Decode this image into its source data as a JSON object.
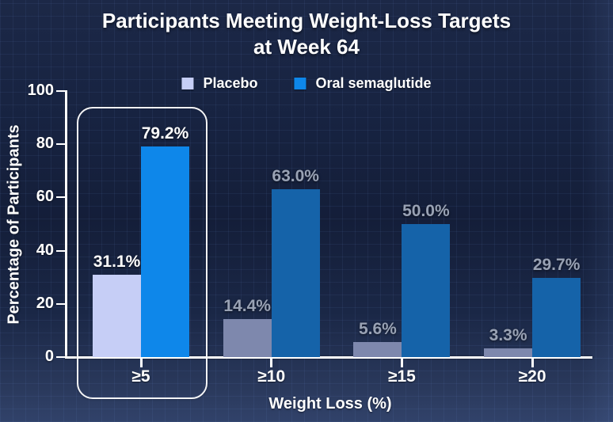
{
  "title": "Participants Meeting Weight-Loss Targets at Week 64",
  "legend": {
    "placebo": "Placebo",
    "semaglutide": "Oral semaglutide"
  },
  "axes": {
    "y_label": "Percentage of Participants",
    "x_label": "Weight Loss (%)"
  },
  "chart_data": {
    "type": "bar",
    "categories": [
      "≥5",
      "≥10",
      "≥15",
      "≥20"
    ],
    "series": [
      {
        "name": "Placebo",
        "values": [
          31.1,
          14.4,
          5.6,
          3.3
        ]
      },
      {
        "name": "Oral semaglutide",
        "values": [
          79.2,
          63.0,
          50.0,
          29.7
        ]
      }
    ],
    "value_labels": [
      [
        "31.1%",
        "79.2%"
      ],
      [
        "14.4%",
        "63.0%"
      ],
      [
        "5.6%",
        "50.0%"
      ],
      [
        "3.3%",
        "29.7%"
      ]
    ],
    "title": "Participants Meeting Weight-Loss Targets at Week 64",
    "xlabel": "Weight Loss (%)",
    "ylabel": "Percentage of Participants",
    "ylim": [
      0,
      100
    ],
    "y_tick_step": 20,
    "y_tick_labels": [
      "0",
      "20",
      "40",
      "60",
      "80",
      "100"
    ],
    "grid": "subtle background grid, no plot gridlines",
    "legend_position": "top center",
    "highlighted_group": 0,
    "colors": {
      "placebo_highlight": "#c6cef6",
      "semaglutide_highlight": "#0e87ea",
      "placebo_muted": "#7e88ad",
      "semaglutide_muted": "#1563a9",
      "label_highlight": "#ffffff",
      "label_muted": "#99a2b4",
      "axis": "#ffffff",
      "background_top": "#1c2847",
      "background_bottom": "#31426a"
    }
  }
}
